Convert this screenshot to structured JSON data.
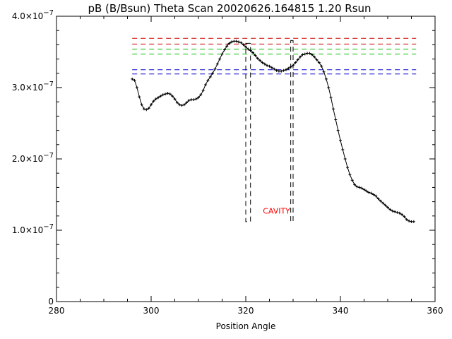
{
  "chart_data": {
    "type": "line",
    "title": "pB (B/Bsun) Theta Scan 20020626.164815 1.20 Rsun",
    "xlabel": "Position Angle",
    "ylabel": "",
    "xlim": [
      280,
      360
    ],
    "ylim": [
      0,
      4e-07
    ],
    "x_ticks": [
      280,
      300,
      320,
      340,
      360
    ],
    "x_tick_labels": [
      "280",
      "300",
      "320",
      "340",
      "360"
    ],
    "y_ticks": [
      0,
      1e-07,
      2e-07,
      3e-07,
      4e-07
    ],
    "y_tick_labels": [
      {
        "mantissa": "0",
        "base": "",
        "exp": ""
      },
      {
        "mantissa": "1.0",
        "base": "×10",
        "exp": "−7"
      },
      {
        "mantissa": "2.0",
        "base": "×10",
        "exp": "−7"
      },
      {
        "mantissa": "3.0",
        "base": "×10",
        "exp": "−7"
      },
      {
        "mantissa": "4.0",
        "base": "×10",
        "exp": "−7"
      }
    ],
    "grid": false,
    "series": [
      {
        "color": "#000000",
        "marker": "plus",
        "x": [
          296,
          296.5,
          297,
          297.5,
          298,
          298.5,
          299,
          299.5,
          300,
          300.5,
          301,
          301.5,
          302,
          302.5,
          303,
          303.5,
          304,
          304.5,
          305,
          305.5,
          306,
          306.5,
          307,
          307.5,
          308,
          308.5,
          309,
          309.5,
          310,
          310.5,
          311,
          311.5,
          312,
          312.5,
          313,
          313.5,
          314,
          314.5,
          315,
          315.5,
          316,
          316.5,
          317,
          317.5,
          318,
          318.5,
          319,
          319.5,
          320,
          320.5,
          321,
          321.5,
          322,
          322.5,
          323,
          323.5,
          324,
          324.5,
          325,
          325.5,
          326,
          326.5,
          327,
          327.5,
          328,
          328.5,
          329,
          329.5,
          330,
          330.5,
          331,
          331.5,
          332,
          332.5,
          333,
          333.5,
          334,
          334.5,
          335,
          335.5,
          336,
          336.5,
          337,
          337.5,
          338,
          338.5,
          339,
          339.5,
          340,
          340.5,
          341,
          341.5,
          342,
          342.5,
          343,
          343.5,
          344,
          344.5,
          345,
          345.5,
          346,
          346.5,
          347,
          347.5,
          348,
          348.5,
          349,
          349.5,
          350,
          350.5,
          351,
          351.5,
          352,
          352.5,
          353,
          353.5,
          354,
          354.5,
          355,
          355.5
        ],
        "y": [
          3.12e-07,
          3.1e-07,
          3e-07,
          2.87e-07,
          2.76e-07,
          2.7e-07,
          2.69e-07,
          2.71e-07,
          2.76e-07,
          2.81e-07,
          2.84e-07,
          2.86e-07,
          2.88e-07,
          2.9e-07,
          2.91e-07,
          2.92e-07,
          2.91e-07,
          2.88e-07,
          2.84e-07,
          2.79e-07,
          2.76e-07,
          2.75e-07,
          2.76e-07,
          2.79e-07,
          2.82e-07,
          2.83e-07,
          2.83e-07,
          2.84e-07,
          2.86e-07,
          2.9e-07,
          2.96e-07,
          3.04e-07,
          3.1e-07,
          3.15e-07,
          3.2e-07,
          3.26e-07,
          3.33e-07,
          3.4e-07,
          3.47e-07,
          3.53e-07,
          3.58e-07,
          3.62e-07,
          3.64e-07,
          3.65e-07,
          3.65e-07,
          3.64e-07,
          3.63e-07,
          3.6e-07,
          3.57e-07,
          3.54e-07,
          3.52e-07,
          3.49e-07,
          3.45e-07,
          3.41e-07,
          3.38e-07,
          3.35e-07,
          3.33e-07,
          3.31e-07,
          3.3e-07,
          3.28e-07,
          3.26e-07,
          3.24e-07,
          3.23e-07,
          3.23e-07,
          3.24e-07,
          3.25e-07,
          3.27e-07,
          3.29e-07,
          3.31e-07,
          3.35e-07,
          3.39e-07,
          3.43e-07,
          3.46e-07,
          3.47e-07,
          3.48e-07,
          3.48e-07,
          3.46e-07,
          3.43e-07,
          3.39e-07,
          3.35e-07,
          3.3e-07,
          3.22e-07,
          3.12e-07,
          3e-07,
          2.86e-07,
          2.7e-07,
          2.55e-07,
          2.4e-07,
          2.26e-07,
          2.13e-07,
          2e-07,
          1.88e-07,
          1.78e-07,
          1.7e-07,
          1.64e-07,
          1.61e-07,
          1.6e-07,
          1.59e-07,
          1.57e-07,
          1.55e-07,
          1.53e-07,
          1.52e-07,
          1.5e-07,
          1.48e-07,
          1.44e-07,
          1.41e-07,
          1.38e-07,
          1.35e-07,
          1.32e-07,
          1.29e-07,
          1.27e-07,
          1.26e-07,
          1.25e-07,
          1.24e-07,
          1.22e-07,
          1.19e-07,
          1.15e-07,
          1.13e-07,
          1.12e-07,
          1.12e-07
        ]
      }
    ],
    "reference_lines": [
      {
        "color": "#cc0000",
        "y": 3.69e-07,
        "x_range": [
          296,
          356
        ]
      },
      {
        "color": "#cc0000",
        "y": 3.61e-07,
        "x_range": [
          296,
          356
        ]
      },
      {
        "color": "#00bb00",
        "y": 3.54e-07,
        "x_range": [
          296,
          356
        ]
      },
      {
        "color": "#00bb00",
        "y": 3.47e-07,
        "x_range": [
          296,
          356
        ]
      },
      {
        "color": "#0000cc",
        "y": 3.25e-07,
        "x_range": [
          296,
          356
        ]
      },
      {
        "color": "#0000cc",
        "y": 3.19e-07,
        "x_range": [
          296,
          356
        ]
      }
    ],
    "cavity_boxes": [
      {
        "x_range": [
          320,
          321
        ],
        "y_range": [
          1.12e-07,
          3.62e-07
        ]
      },
      {
        "x_range": [
          329.5,
          330
        ],
        "y_range": [
          1.12e-07,
          3.66e-07
        ]
      }
    ],
    "annotations": [
      {
        "text": "CAVITY",
        "x": 326.5,
        "y": 1.27e-07,
        "color": "#ff0000"
      }
    ]
  }
}
